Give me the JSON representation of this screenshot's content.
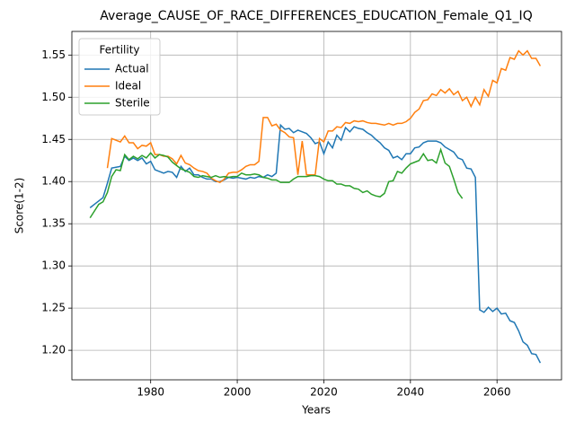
{
  "chart_data": {
    "type": "line",
    "title": "Average_CAUSE_OF_RACE_DIFFERENCES_EDUCATION_Female_Q1_IQ",
    "x_label": "Years",
    "y_label": "Score(1-2)",
    "legend_title": "Fertility",
    "legend_loc": "upper left",
    "grid": true,
    "xlim": [
      1961.8,
      2074.9
    ],
    "ylim": [
      1.165,
      1.578
    ],
    "xticks": [
      1980,
      2000,
      2020,
      2040,
      2060
    ],
    "yticks": [
      {
        "value": 1.2,
        "label": "1.20"
      },
      1.25,
      {
        "value": 1.3,
        "label": "1.30"
      },
      1.35,
      {
        "value": 1.4,
        "label": "1.40"
      },
      1.45,
      {
        "value": 1.5,
        "label": "1.50"
      },
      1.55
    ],
    "x": [
      1966,
      1967,
      1968,
      1969,
      1970,
      1971,
      1972,
      1973,
      1974,
      1975,
      1976,
      1977,
      1978,
      1979,
      1980,
      1981,
      1982,
      1983,
      1984,
      1985,
      1986,
      1987,
      1988,
      1989,
      1990,
      1991,
      1992,
      1993,
      1994,
      1995,
      1996,
      1997,
      1998,
      1999,
      2000,
      2001,
      2002,
      2003,
      2004,
      2005,
      2006,
      2007,
      2008,
      2009,
      2010,
      2011,
      2012,
      2013,
      2014,
      2015,
      2016,
      2017,
      2018,
      2019,
      2020,
      2021,
      2022,
      2023,
      2024,
      2025,
      2026,
      2027,
      2028,
      2029,
      2030,
      2031,
      2032,
      2033,
      2034,
      2035,
      2036,
      2037,
      2038,
      2039,
      2040,
      2041,
      2042,
      2043,
      2044,
      2045,
      2046,
      2047,
      2048,
      2049,
      2050,
      2051,
      2052,
      2053,
      2054,
      2055,
      2056,
      2057,
      2058,
      2059,
      2060,
      2061,
      2062,
      2063,
      2064,
      2065,
      2066,
      2067,
      2068,
      2069,
      2070
    ],
    "series": [
      {
        "name": "Actual",
        "color": "#1f77b4",
        "values": [
          1.369,
          1.373,
          1.377,
          1.381,
          1.398,
          1.416,
          1.417,
          1.418,
          1.43,
          1.425,
          1.428,
          1.425,
          1.428,
          1.421,
          1.424,
          1.414,
          1.412,
          1.41,
          1.412,
          1.411,
          1.405,
          1.418,
          1.412,
          1.416,
          1.408,
          1.408,
          1.405,
          1.403,
          1.403,
          1.4,
          1.4,
          1.402,
          1.405,
          1.404,
          1.405,
          1.404,
          1.403,
          1.405,
          1.404,
          1.406,
          1.405,
          1.408,
          1.406,
          1.41,
          1.467,
          1.462,
          1.463,
          1.458,
          1.461,
          1.459,
          1.457,
          1.452,
          1.445,
          1.447,
          1.433,
          1.447,
          1.44,
          1.455,
          1.449,
          1.464,
          1.459,
          1.465,
          1.463,
          1.462,
          1.458,
          1.455,
          1.45,
          1.446,
          1.44,
          1.437,
          1.428,
          1.43,
          1.426,
          1.433,
          1.433,
          1.44,
          1.441,
          1.446,
          1.448,
          1.448,
          1.448,
          1.446,
          1.441,
          1.438,
          1.435,
          1.428,
          1.426,
          1.416,
          1.415,
          1.405,
          1.248,
          1.245,
          1.251,
          1.246,
          1.25,
          1.243,
          1.244,
          1.235,
          1.233,
          1.223,
          1.21,
          1.206,
          1.196,
          1.195,
          1.185
        ]
      },
      {
        "name": "Ideal",
        "color": "#ff7f0e",
        "values": [
          null,
          null,
          null,
          null,
          1.416,
          1.451,
          1.449,
          1.447,
          1.454,
          1.446,
          1.446,
          1.439,
          1.443,
          1.442,
          1.446,
          1.432,
          1.432,
          1.43,
          1.43,
          1.427,
          1.421,
          1.431,
          1.422,
          1.42,
          1.416,
          1.413,
          1.412,
          1.41,
          1.404,
          1.401,
          1.399,
          1.403,
          1.41,
          1.411,
          1.411,
          1.414,
          1.418,
          1.42,
          1.42,
          1.424,
          1.476,
          1.476,
          1.466,
          1.468,
          1.461,
          1.458,
          1.453,
          1.452,
          1.408,
          1.448,
          1.408,
          1.408,
          1.408,
          1.451,
          1.447,
          1.46,
          1.46,
          1.465,
          1.464,
          1.47,
          1.469,
          1.472,
          1.471,
          1.472,
          1.47,
          1.469,
          1.469,
          1.468,
          1.467,
          1.469,
          1.467,
          1.469,
          1.469,
          1.471,
          1.475,
          1.482,
          1.486,
          1.496,
          1.497,
          1.504,
          1.502,
          1.509,
          1.505,
          1.51,
          1.503,
          1.507,
          1.496,
          1.5,
          1.489,
          1.5,
          1.491,
          1.509,
          1.501,
          1.52,
          1.517,
          1.534,
          1.532,
          1.547,
          1.545,
          1.555,
          1.55,
          1.555,
          1.546,
          1.546,
          1.537
        ]
      },
      {
        "name": "Sterile",
        "color": "#2ca02c",
        "values": [
          1.357,
          1.365,
          1.373,
          1.376,
          1.387,
          1.406,
          1.414,
          1.413,
          1.432,
          1.426,
          1.43,
          1.427,
          1.431,
          1.428,
          1.434,
          1.428,
          1.432,
          1.431,
          1.429,
          1.423,
          1.419,
          1.415,
          1.413,
          1.411,
          1.406,
          1.405,
          1.407,
          1.406,
          1.405,
          1.407,
          1.405,
          1.406,
          1.405,
          1.406,
          1.406,
          1.41,
          1.408,
          1.408,
          1.409,
          1.408,
          1.405,
          1.404,
          1.402,
          1.402,
          1.399,
          1.399,
          1.399,
          1.403,
          1.406,
          1.406,
          1.406,
          1.407,
          1.407,
          1.406,
          1.403,
          1.401,
          1.401,
          1.397,
          1.397,
          1.395,
          1.395,
          1.392,
          1.391,
          1.387,
          1.389,
          1.385,
          1.383,
          1.382,
          1.386,
          1.4,
          1.401,
          1.412,
          1.41,
          1.416,
          1.421,
          1.423,
          1.425,
          1.433,
          1.425,
          1.426,
          1.422,
          1.438,
          1.422,
          1.418,
          1.403,
          1.387,
          1.38,
          null,
          null,
          null,
          null,
          null,
          null,
          null,
          null,
          null,
          null,
          null,
          null,
          null,
          null,
          null,
          null,
          null,
          null
        ]
      }
    ]
  }
}
